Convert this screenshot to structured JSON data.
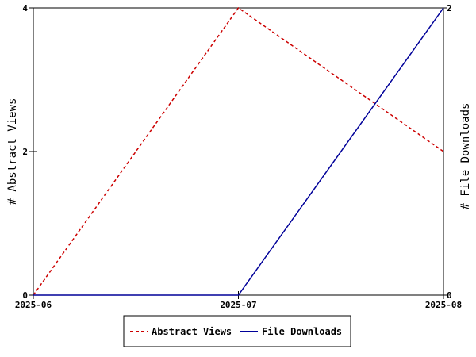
{
  "chart_data": {
    "type": "line",
    "x": [
      "2025-06",
      "2025-07",
      "2025-08"
    ],
    "y_left": {
      "label": "# Abstract Views",
      "ylim": [
        0,
        4
      ],
      "ticks": [
        "0",
        "2",
        "4"
      ]
    },
    "y_right": {
      "label": "# File Downloads",
      "ylim": [
        0,
        2
      ],
      "ticks": [
        "0",
        "2"
      ]
    },
    "series": [
      {
        "name": "Abstract Views",
        "axis": "left",
        "values": [
          0,
          4,
          2
        ],
        "color": "#cc0000",
        "dash": true
      },
      {
        "name": "File Downloads",
        "axis": "right",
        "values": [
          0,
          0,
          2
        ],
        "color": "#000099",
        "dash": false
      }
    ],
    "legend": "bottom-center",
    "grid": false
  }
}
